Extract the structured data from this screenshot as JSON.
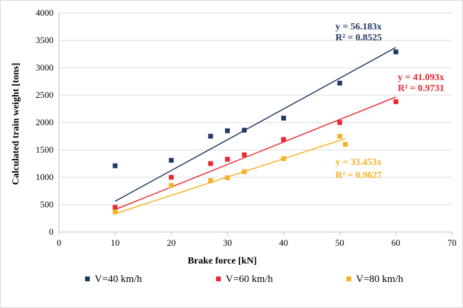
{
  "chart_data": {
    "type": "scatter",
    "xlabel": "Brake force [kN]",
    "ylabel": "Calculated train weight [tons]",
    "xlim": [
      0,
      70
    ],
    "ylim": [
      0,
      4000
    ],
    "xticks": [
      0,
      10,
      20,
      30,
      40,
      50,
      60,
      70
    ],
    "yticks": [
      0,
      500,
      1000,
      1500,
      2000,
      2500,
      3000,
      3500,
      4000
    ],
    "grid": "horizontal",
    "legend_position": "bottom",
    "series": [
      {
        "name": "V=40 km/h",
        "color": "#1f3864",
        "points": [
          [
            10,
            1210
          ],
          [
            20,
            1310
          ],
          [
            27,
            1750
          ],
          [
            30,
            1850
          ],
          [
            33,
            1860
          ],
          [
            40,
            2080
          ],
          [
            50,
            2720
          ],
          [
            60,
            3290
          ]
        ],
        "trendline": {
          "slope": 56.183,
          "x_range": [
            10,
            60
          ],
          "equation": "y = 56.183x",
          "r2": "R² = 0.8525"
        }
      },
      {
        "name": "V=60 km/h",
        "color": "#e8282e",
        "points": [
          [
            10,
            450
          ],
          [
            20,
            1000
          ],
          [
            27,
            1250
          ],
          [
            30,
            1330
          ],
          [
            33,
            1410
          ],
          [
            40,
            1690
          ],
          [
            50,
            2000
          ],
          [
            60,
            2380
          ]
        ],
        "trendline": {
          "slope": 41.093,
          "x_range": [
            10,
            60
          ],
          "equation": "y = 41.093x",
          "r2": "R² = 0.9731"
        }
      },
      {
        "name": "V=80 km/h",
        "color": "#f6b024",
        "points": [
          [
            10,
            370
          ],
          [
            20,
            850
          ],
          [
            27,
            940
          ],
          [
            30,
            990
          ],
          [
            33,
            1100
          ],
          [
            40,
            1340
          ],
          [
            50,
            1750
          ],
          [
            51,
            1600
          ]
        ],
        "trendline": {
          "slope": 33.453,
          "x_range": [
            10,
            51
          ],
          "equation": "y = 33.453x",
          "r2": "R² = 0.9627"
        }
      }
    ]
  }
}
